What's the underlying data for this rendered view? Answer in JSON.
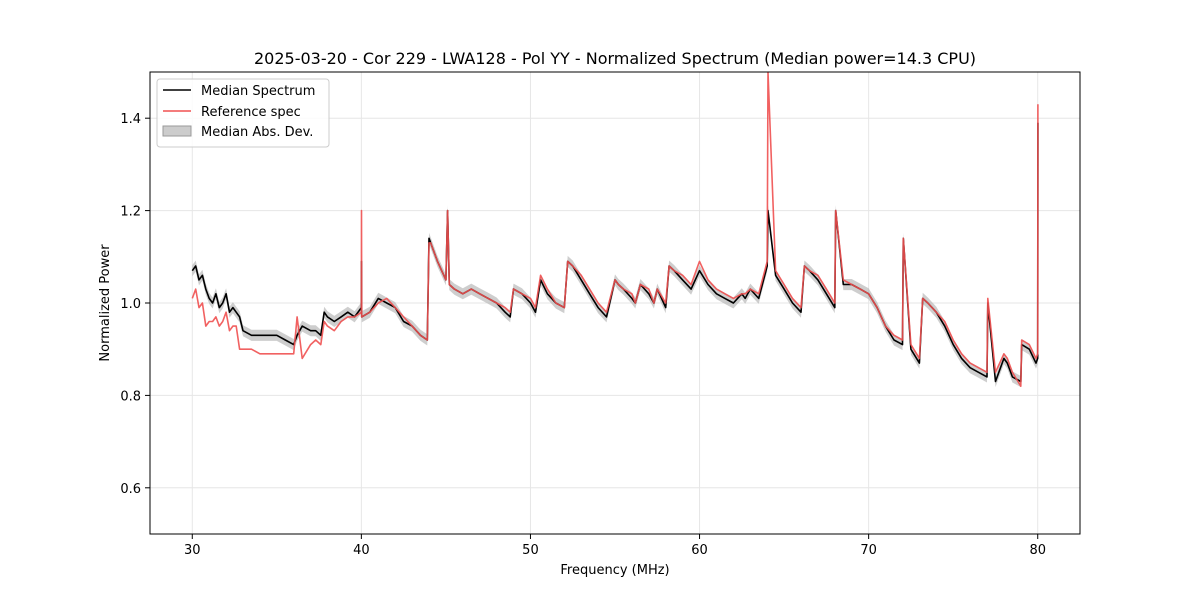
{
  "chart_data": {
    "type": "line",
    "title": "2025-03-20 - Cor 229 - LWA128 - Pol YY - Normalized Spectrum (Median power=14.3 CPU)",
    "xlabel": "Frequency (MHz)",
    "ylabel": "Normalized Power",
    "xlim": [
      27.5,
      82.5
    ],
    "ylim": [
      0.5,
      1.5
    ],
    "xticks": [
      30,
      40,
      50,
      60,
      70,
      80
    ],
    "yticks": [
      0.6,
      0.8,
      1.0,
      1.2,
      1.4
    ],
    "xtick_labels": [
      "30",
      "40",
      "50",
      "60",
      "70",
      "80"
    ],
    "ytick_labels": [
      "0.6",
      "0.8",
      "1.0",
      "1.2",
      "1.4"
    ],
    "grid": true,
    "legend": {
      "position": "top-left",
      "entries": [
        "Median Spectrum",
        "Reference spec",
        "Median Abs. Dev."
      ]
    },
    "colors": {
      "median": "#000000",
      "reference": "#f05050",
      "mad_fill": "#b3b3b3"
    },
    "series": [
      {
        "name": "Median Spectrum",
        "x": [
          30.0,
          30.2,
          30.4,
          30.6,
          30.8,
          31.0,
          31.2,
          31.4,
          31.6,
          31.8,
          32.0,
          32.2,
          32.4,
          32.6,
          32.8,
          33.0,
          33.5,
          34.0,
          34.5,
          35.0,
          35.5,
          36.0,
          36.2,
          36.5,
          37.0,
          37.3,
          37.6,
          37.8,
          38.0,
          38.4,
          38.8,
          39.2,
          39.6,
          40.0,
          40.01,
          40.02,
          40.5,
          41.0,
          41.5,
          42.0,
          42.5,
          43.0,
          43.5,
          43.9,
          44.0,
          44.1,
          44.2,
          44.5,
          45.0,
          45.1,
          45.2,
          45.5,
          46.0,
          46.5,
          47.0,
          47.5,
          48.0,
          48.5,
          48.8,
          49.0,
          49.5,
          50.0,
          50.3,
          50.6,
          51.0,
          51.5,
          52.0,
          52.2,
          52.5,
          53.0,
          53.5,
          54.0,
          54.5,
          55.0,
          55.2,
          55.5,
          56.0,
          56.2,
          56.5,
          57.0,
          57.3,
          57.5,
          58.0,
          58.2,
          58.5,
          59.0,
          59.5,
          60.0,
          60.5,
          61.0,
          61.5,
          62.0,
          62.5,
          62.7,
          63.0,
          63.5,
          64.0,
          64.05,
          64.5,
          65.0,
          65.5,
          66.0,
          66.2,
          66.5,
          67.0,
          67.5,
          68.0,
          68.05,
          68.5,
          69.0,
          69.5,
          70.0,
          70.5,
          71.0,
          71.5,
          72.0,
          72.05,
          72.5,
          73.0,
          73.2,
          73.5,
          74.0,
          74.5,
          75.0,
          75.5,
          76.0,
          76.5,
          77.0,
          77.05,
          77.5,
          78.0,
          78.2,
          78.5,
          79.0,
          79.05,
          79.5,
          79.9,
          80.0,
          80.01
        ],
        "values": [
          1.07,
          1.08,
          1.05,
          1.06,
          1.03,
          1.01,
          1.0,
          1.02,
          0.99,
          1.0,
          1.02,
          0.98,
          0.99,
          0.98,
          0.97,
          0.94,
          0.93,
          0.93,
          0.93,
          0.93,
          0.92,
          0.91,
          0.93,
          0.95,
          0.94,
          0.94,
          0.93,
          0.98,
          0.97,
          0.96,
          0.97,
          0.98,
          0.97,
          0.99,
          1.09,
          0.97,
          0.98,
          1.01,
          1.0,
          0.99,
          0.96,
          0.95,
          0.93,
          0.92,
          1.14,
          1.13,
          1.12,
          1.09,
          1.05,
          1.2,
          1.04,
          1.03,
          1.02,
          1.03,
          1.02,
          1.01,
          1.0,
          0.98,
          0.97,
          1.03,
          1.02,
          1.0,
          0.98,
          1.05,
          1.02,
          1.0,
          0.99,
          1.09,
          1.08,
          1.05,
          1.02,
          0.99,
          0.97,
          1.05,
          1.04,
          1.03,
          1.01,
          1.0,
          1.04,
          1.02,
          1.0,
          1.03,
          0.99,
          1.08,
          1.07,
          1.05,
          1.03,
          1.07,
          1.04,
          1.02,
          1.01,
          1.0,
          1.02,
          1.01,
          1.03,
          1.01,
          1.08,
          1.2,
          1.06,
          1.03,
          1.0,
          0.98,
          1.08,
          1.07,
          1.05,
          1.02,
          0.99,
          1.2,
          1.04,
          1.04,
          1.03,
          1.02,
          0.99,
          0.95,
          0.92,
          0.91,
          1.14,
          0.9,
          0.87,
          1.01,
          1.0,
          0.98,
          0.95,
          0.91,
          0.88,
          0.86,
          0.85,
          0.84,
          1.0,
          0.83,
          0.88,
          0.87,
          0.84,
          0.83,
          0.91,
          0.9,
          0.87,
          0.88,
          1.39
        ]
      },
      {
        "name": "Reference spec",
        "x": [
          30.0,
          30.2,
          30.4,
          30.6,
          30.8,
          31.0,
          31.2,
          31.4,
          31.6,
          31.8,
          32.0,
          32.2,
          32.4,
          32.6,
          32.8,
          33.0,
          33.5,
          34.0,
          34.5,
          35.0,
          35.5,
          36.0,
          36.2,
          36.5,
          37.0,
          37.3,
          37.6,
          37.8,
          38.0,
          38.4,
          38.8,
          39.2,
          39.6,
          40.0,
          40.01,
          40.02,
          40.5,
          41.0,
          41.5,
          42.0,
          42.5,
          43.0,
          43.5,
          43.9,
          44.0,
          44.1,
          44.2,
          44.5,
          45.0,
          45.1,
          45.2,
          45.5,
          46.0,
          46.5,
          47.0,
          47.5,
          48.0,
          48.5,
          48.8,
          49.0,
          49.5,
          50.0,
          50.3,
          50.6,
          51.0,
          51.5,
          52.0,
          52.2,
          52.5,
          53.0,
          53.5,
          54.0,
          54.5,
          55.0,
          55.2,
          55.5,
          56.0,
          56.2,
          56.5,
          57.0,
          57.3,
          57.5,
          58.0,
          58.2,
          58.5,
          59.0,
          59.5,
          60.0,
          60.5,
          61.0,
          61.5,
          62.0,
          62.5,
          62.7,
          63.0,
          63.5,
          64.0,
          64.05,
          64.5,
          65.0,
          65.5,
          66.0,
          66.2,
          66.5,
          67.0,
          67.5,
          68.0,
          68.05,
          68.5,
          69.0,
          69.5,
          70.0,
          70.5,
          71.0,
          71.5,
          72.0,
          72.05,
          72.5,
          73.0,
          73.2,
          73.5,
          74.0,
          74.5,
          75.0,
          75.5,
          76.0,
          76.5,
          77.0,
          77.05,
          77.5,
          78.0,
          78.2,
          78.5,
          79.0,
          79.05,
          79.5,
          79.9,
          80.0,
          80.01
        ],
        "values": [
          1.01,
          1.03,
          0.99,
          1.0,
          0.95,
          0.96,
          0.96,
          0.97,
          0.95,
          0.96,
          0.98,
          0.94,
          0.95,
          0.95,
          0.9,
          0.9,
          0.9,
          0.89,
          0.89,
          0.89,
          0.89,
          0.89,
          0.97,
          0.88,
          0.91,
          0.92,
          0.91,
          0.96,
          0.95,
          0.94,
          0.96,
          0.97,
          0.97,
          0.98,
          1.2,
          0.97,
          0.98,
          1.0,
          1.01,
          0.99,
          0.97,
          0.95,
          0.93,
          0.92,
          1.13,
          1.13,
          1.12,
          1.09,
          1.05,
          1.2,
          1.04,
          1.03,
          1.02,
          1.03,
          1.02,
          1.01,
          1.0,
          0.99,
          0.98,
          1.03,
          1.02,
          1.01,
          0.99,
          1.06,
          1.03,
          1.0,
          0.99,
          1.09,
          1.08,
          1.06,
          1.03,
          1.0,
          0.98,
          1.05,
          1.04,
          1.03,
          1.02,
          1.0,
          1.04,
          1.03,
          1.0,
          1.03,
          1.0,
          1.08,
          1.07,
          1.06,
          1.04,
          1.09,
          1.05,
          1.03,
          1.02,
          1.01,
          1.02,
          1.02,
          1.03,
          1.02,
          1.09,
          1.5,
          1.07,
          1.04,
          1.01,
          0.99,
          1.08,
          1.07,
          1.06,
          1.03,
          1.0,
          1.2,
          1.05,
          1.04,
          1.03,
          1.02,
          0.99,
          0.95,
          0.93,
          0.92,
          1.14,
          0.91,
          0.88,
          1.01,
          1.0,
          0.98,
          0.96,
          0.92,
          0.89,
          0.87,
          0.86,
          0.85,
          1.01,
          0.85,
          0.89,
          0.88,
          0.85,
          0.82,
          0.92,
          0.91,
          0.88,
          0.89,
          1.43
        ]
      }
    ],
    "mad_band": {
      "name": "Median Abs. Dev.",
      "halfwidth": 0.012
    }
  }
}
